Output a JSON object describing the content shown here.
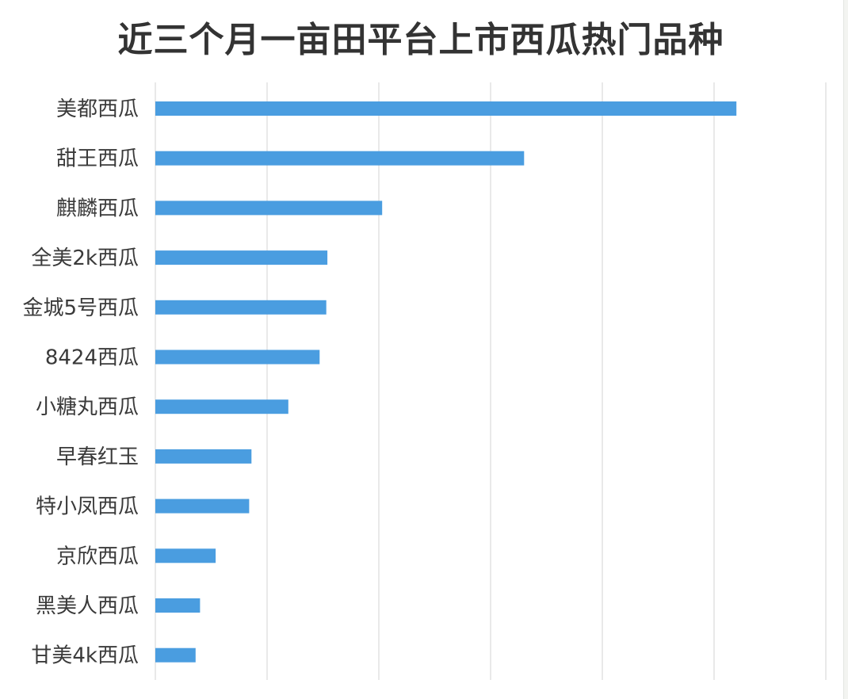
{
  "chart_data": {
    "type": "bar",
    "orientation": "horizontal",
    "title": "近三个月一亩田平台上市西瓜热门品种",
    "xlabel": "",
    "ylabel": "",
    "categories": [
      "美都西瓜",
      "甜王西瓜",
      "麒麟西瓜",
      "全美2k西瓜",
      "金城5号西瓜",
      "8424西瓜",
      "小糖丸西瓜",
      "早春红玉",
      "特小凤西瓜",
      "京欣西瓜",
      "黑美人西瓜",
      "甘美4k西瓜"
    ],
    "values": [
      5.2,
      3.3,
      2.03,
      1.54,
      1.53,
      1.47,
      1.19,
      0.86,
      0.84,
      0.54,
      0.4,
      0.36
    ],
    "xlim": [
      0,
      6
    ],
    "grid": true,
    "legend": "none",
    "show_tick_labels": false,
    "bar_color": "#4a9de0",
    "grid_color": "#e2e2e2"
  }
}
